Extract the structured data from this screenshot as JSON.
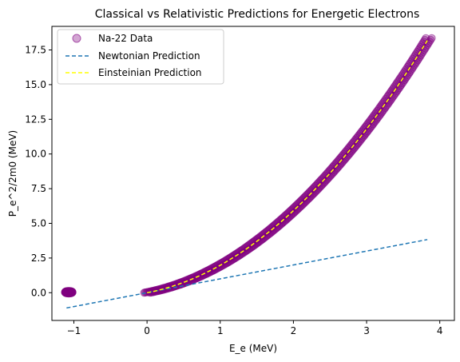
{
  "chart_data": {
    "type": "scatter",
    "title": "Classical vs Relativistic Predictions for Energetic Electrons",
    "xlabel": "E_e (MeV)",
    "ylabel": "P_e^2/2m0 (MeV)",
    "xlim": [
      -1.3,
      4.2
    ],
    "ylim": [
      -2.0,
      19.2
    ],
    "xticks": [
      -1,
      0,
      1,
      2,
      3,
      4
    ],
    "xtick_labels": [
      "−1",
      "0",
      "1",
      "2",
      "3",
      "4"
    ],
    "yticks": [
      0,
      2.5,
      5,
      7.5,
      10,
      12.5,
      15,
      17.5
    ],
    "ytick_labels": [
      "0.0",
      "2.5",
      "5.0",
      "7.5",
      "10.0",
      "12.5",
      "15.0",
      "17.5"
    ],
    "legend_position": "top-left",
    "grid": false,
    "series": [
      {
        "name": "Na-22 Data",
        "kind": "scatter",
        "color": "#800080",
        "marker": "circle",
        "alpha": 0.35,
        "clusters": [
          {
            "x_range": [
              -1.12,
              -1.02
            ],
            "y_range": [
              -0.05,
              0.12
            ]
          },
          {
            "x_range": [
              0.0,
              3.85
            ],
            "relation": "E + E^2/(2*0.511)"
          }
        ]
      },
      {
        "name": "Newtonian Prediction",
        "kind": "line",
        "color": "#1f77b4",
        "linestyle": "dashed",
        "points": [
          [
            -1.1,
            -1.1
          ],
          [
            3.83,
            3.83
          ]
        ]
      },
      {
        "name": "Einsteinian Prediction",
        "kind": "line",
        "color": "#ffff00",
        "linestyle": "dashed",
        "x_range": [
          0.0,
          3.83
        ],
        "relation": "E + E^2/(2*0.511)"
      }
    ]
  }
}
